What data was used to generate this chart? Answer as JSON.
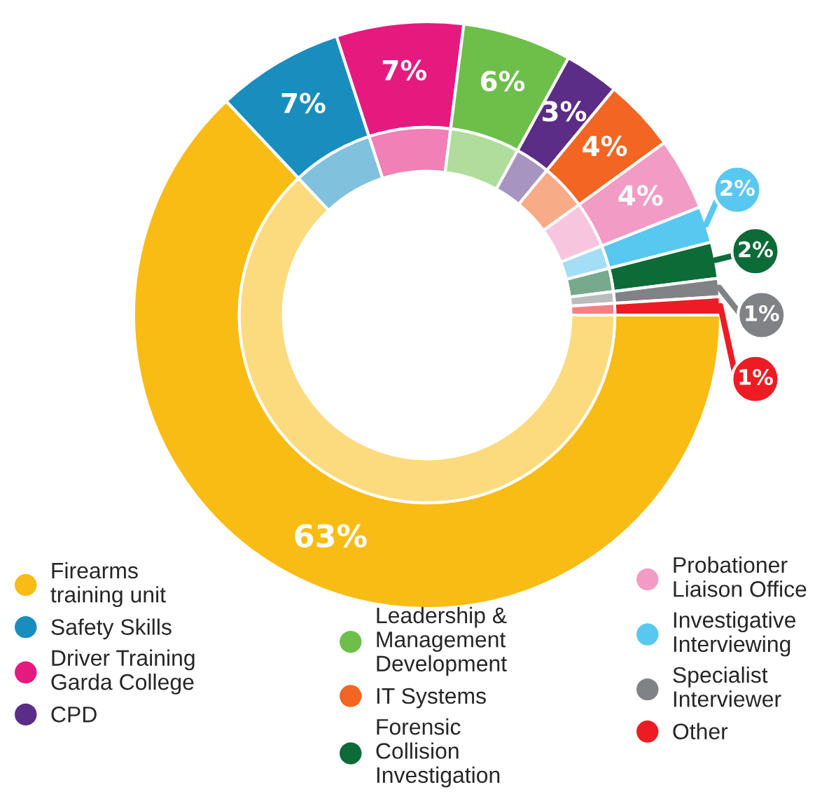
{
  "chart_data": {
    "type": "donut",
    "categories": [
      "Firearms training unit",
      "Safety Skills",
      "Driver Training Garda College",
      "Leadership & Management Development",
      "CPD",
      "IT Systems",
      "Probationer Liaison Office",
      "Investigative Interviewing",
      "Forensic Collision Investigation",
      "Specialist Interviewer",
      "Other"
    ],
    "series": [
      {
        "values": [
          63,
          7,
          7,
          6,
          3,
          4,
          4,
          2,
          2,
          1,
          1
        ],
        "colors": [
          "#fcda7e",
          "#80c1de",
          "#f080b5",
          "#b0dc9c",
          "#a894c1",
          "#f8ab87",
          "#f7c6de",
          "#a4def6",
          "#77aa8d",
          "#bbbcbd",
          "#f48084"
        ]
      },
      {
        "values": [
          63,
          7,
          7,
          6,
          3,
          4,
          4,
          2,
          2,
          1,
          1
        ],
        "colors": [
          "#f9bc15",
          "#1a8dbf",
          "#e6197f",
          "#6dbf4a",
          "#5b2d86",
          "#f26522",
          "#f29bc4",
          "#58c8f0",
          "#0c6b37",
          "#808285",
          "#ed1c24"
        ],
        "value_labels": [
          "63%",
          "7%",
          "7%",
          "6%",
          "3%",
          "4%",
          "4%",
          "2%",
          "2%",
          "1%",
          "1%"
        ]
      }
    ],
    "legend": "bottom"
  }
}
